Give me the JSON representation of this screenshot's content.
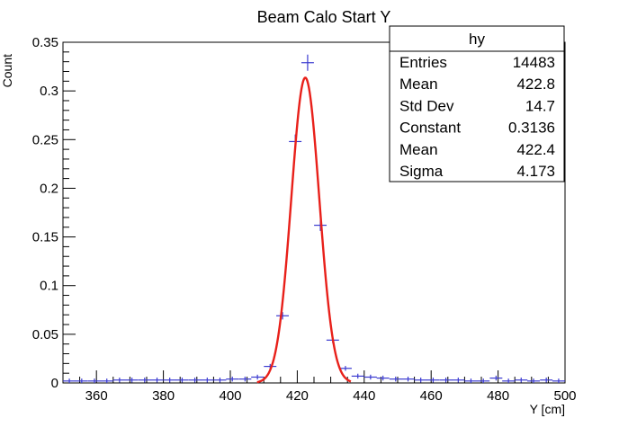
{
  "chart_data": {
    "type": "scatter",
    "title": "Beam Calo Start Y",
    "xlabel": "Y [cm]",
    "ylabel": "Count",
    "xlim": [
      350,
      500
    ],
    "ylim": [
      0,
      0.35
    ],
    "x_ticks": [
      360,
      380,
      400,
      420,
      440,
      460,
      480,
      500
    ],
    "y_ticks": [
      0,
      0.05,
      0.1,
      0.15,
      0.2,
      0.25,
      0.3,
      0.35
    ],
    "y_tick_labels": [
      "0",
      "0.05",
      "0.1",
      "0.15",
      "0.2",
      "0.25",
      "0.3",
      "0.35"
    ],
    "bin_width": 3.75,
    "series": [
      {
        "name": "hy",
        "style": "error-cross",
        "color": "#3a3ad0",
        "x": [
          351.9,
          355.6,
          359.4,
          363.1,
          366.9,
          370.6,
          374.4,
          378.1,
          381.9,
          385.6,
          389.4,
          393.1,
          396.9,
          400.6,
          404.4,
          408.1,
          411.9,
          415.6,
          419.4,
          423.1,
          426.9,
          430.6,
          434.4,
          438.1,
          441.9,
          445.6,
          449.4,
          453.1,
          456.9,
          460.6,
          464.4,
          468.1,
          471.9,
          475.6,
          479.4,
          483.1,
          486.9,
          490.6,
          494.4,
          498.1
        ],
        "y": [
          0.002,
          0.002,
          0.002,
          0.002,
          0.003,
          0.003,
          0.003,
          0.003,
          0.003,
          0.003,
          0.003,
          0.003,
          0.003,
          0.004,
          0.004,
          0.006,
          0.017,
          0.069,
          0.248,
          0.329,
          0.162,
          0.044,
          0.015,
          0.007,
          0.006,
          0.005,
          0.004,
          0.004,
          0.003,
          0.003,
          0.003,
          0.003,
          0.002,
          0.002,
          0.005,
          0.002,
          0.003,
          0.002,
          0.003,
          0.002
        ]
      },
      {
        "name": "gaus fit",
        "style": "line",
        "color": "#e8201a",
        "function": "gaussian",
        "constant": 0.3136,
        "mean": 422.4,
        "sigma": 4.173,
        "range": [
          408,
          436
        ]
      }
    ],
    "stats_box": {
      "title": "hy",
      "rows": [
        {
          "label": "Entries",
          "value": "14483"
        },
        {
          "label": "Mean",
          "value": "422.8"
        },
        {
          "label": "Std Dev",
          "value": "14.7"
        },
        {
          "label": "Constant",
          "value": "0.3136"
        },
        {
          "label": "Mean",
          "value": "422.4"
        },
        {
          "label": "Sigma",
          "value": "4.173"
        }
      ],
      "placement": "top-right"
    },
    "grid": false
  }
}
